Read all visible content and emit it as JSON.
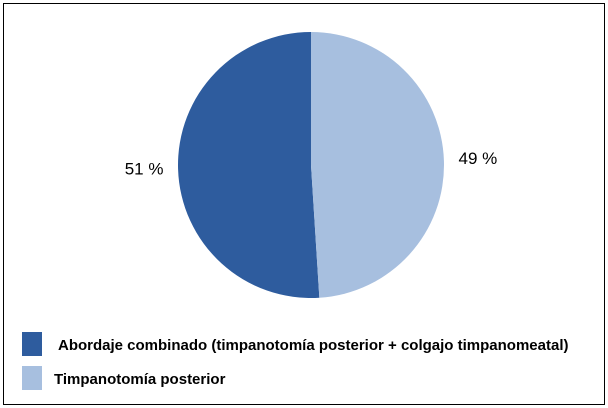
{
  "chart_data": {
    "type": "pie",
    "categories": [
      "Abordaje combinado (timpanotomía posterior + colgajo timpanomeatal)",
      "Timpanotomía posterior"
    ],
    "values": [
      51,
      49
    ],
    "value_labels": [
      "51 %",
      "49 %"
    ],
    "colors": [
      "#2e5c9e",
      "#a7bfdf"
    ],
    "legend": "bottom-left"
  }
}
